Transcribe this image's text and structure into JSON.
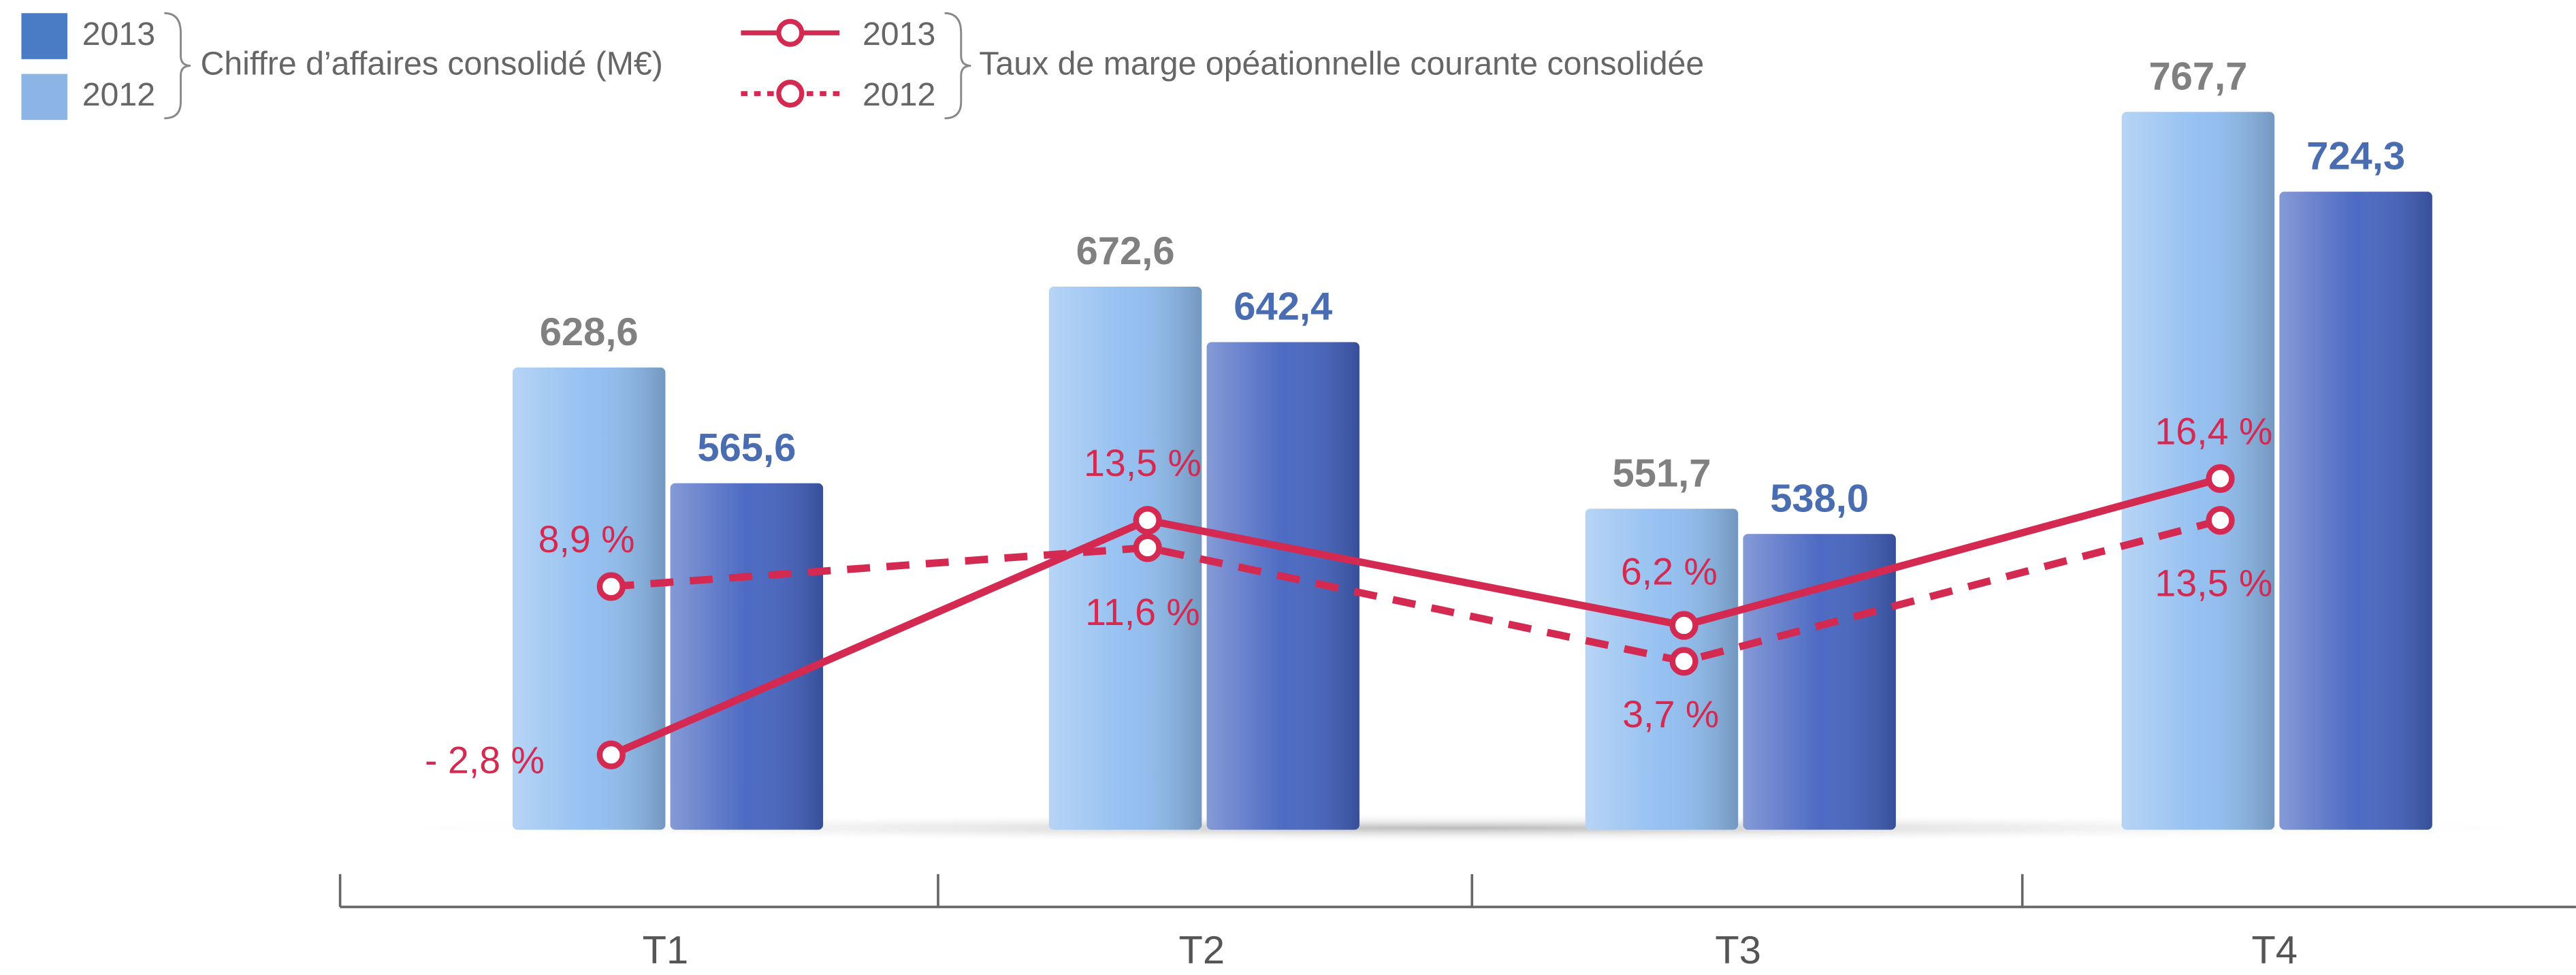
{
  "chart_data": {
    "type": "bar",
    "bar_legend_title": "Chiffre d’affaires consolidé (M€)",
    "line_legend_title": "Taux de marge opéationnelle courante consolidée",
    "categories": [
      "T1",
      "T2",
      "T3",
      "T4"
    ],
    "series": [
      {
        "name": "2012",
        "color": "#8fbdf0",
        "label_color": "#808080",
        "values": [
          628.6,
          672.6,
          551.7,
          767.7
        ],
        "value_labels": [
          "628,6",
          "672,6",
          "551,7",
          "767,7"
        ]
      },
      {
        "name": "2013",
        "color": "#4463c0",
        "label_color": "#4a6cb0",
        "values": [
          565.6,
          642.4,
          538,
          724.3
        ],
        "value_labels": [
          "565,6",
          "642,4",
          "538,0",
          "724,3"
        ]
      },
      {
        "name": "2013",
        "type": "line",
        "axis": "y2",
        "color": "#d42a52",
        "dashed": false,
        "values": [
          -2.8,
          13.5,
          6.2,
          16.4
        ],
        "value_labels": [
          "- 2,8 %",
          "13,5 %",
          "6,2 %",
          "16,4 %"
        ]
      },
      {
        "name": "2012",
        "type": "line",
        "axis": "y2",
        "color": "#d42a52",
        "dashed": true,
        "values": [
          8.9,
          11.6,
          3.7,
          13.5
        ],
        "value_labels": [
          "8,9 %",
          "11,6 %",
          "3,7 %",
          "13,5 %"
        ]
      }
    ],
    "ylim": [
      377,
      800
    ],
    "y2lim": [
      -8,
      46
    ]
  }
}
